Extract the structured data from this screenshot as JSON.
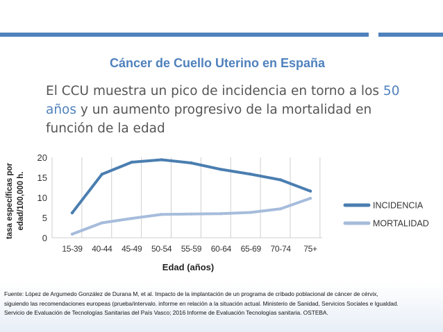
{
  "slide": {
    "title": "Cáncer de Cuello Uterino en España",
    "body_part1": "El CCU muestra un pico de incidencia en torno a los ",
    "body_highlight": "50 años",
    "body_part2": " y un aumento progresivo de la mortalidad en función de la edad",
    "footer_line1": "Fuente: López de Argumedo González de Durana M, et al.  Impacto de la implantación de un programa de cribado poblacional de cáncer de cérvix,",
    "footer_line2": "siguiendo las recomendaciones europeas (prueba/intervalo. informe en relación a la situación actual. Ministerio de Sanidad, Servicios Sociales e Igualdad.",
    "footer_line3": "Servicio de Evaluación de Tecnologías Sanitarias del País Vasco; 2016 Informe de Evaluación Tecnologías sanitaria. OSTEBA.",
    "accent_color": "#4f81bd"
  },
  "chart_data": {
    "type": "line",
    "title": "",
    "xlabel": "Edad (años)",
    "ylabel": "tasa específicas por edad/100,000 h.",
    "categories": [
      "15-39",
      "40-44",
      "45-49",
      "50-54",
      "55-59",
      "60-64",
      "65-69",
      "70-74",
      "75+"
    ],
    "series": [
      {
        "name": "INCIDENCIA",
        "color": "#4a7eb0",
        "values": [
          6.2,
          15.8,
          18.8,
          19.4,
          18.6,
          17.0,
          15.8,
          14.4,
          11.6
        ]
      },
      {
        "name": "MORTALIDAD",
        "color": "#a6bcdc",
        "values": [
          0.9,
          3.7,
          4.8,
          5.8,
          5.9,
          6.0,
          6.3,
          7.2,
          9.8
        ]
      }
    ],
    "ylim": [
      0,
      20
    ],
    "yticks": [
      "0",
      "5",
      "10",
      "15",
      "20"
    ],
    "grid": "vertical",
    "legend": "right"
  }
}
